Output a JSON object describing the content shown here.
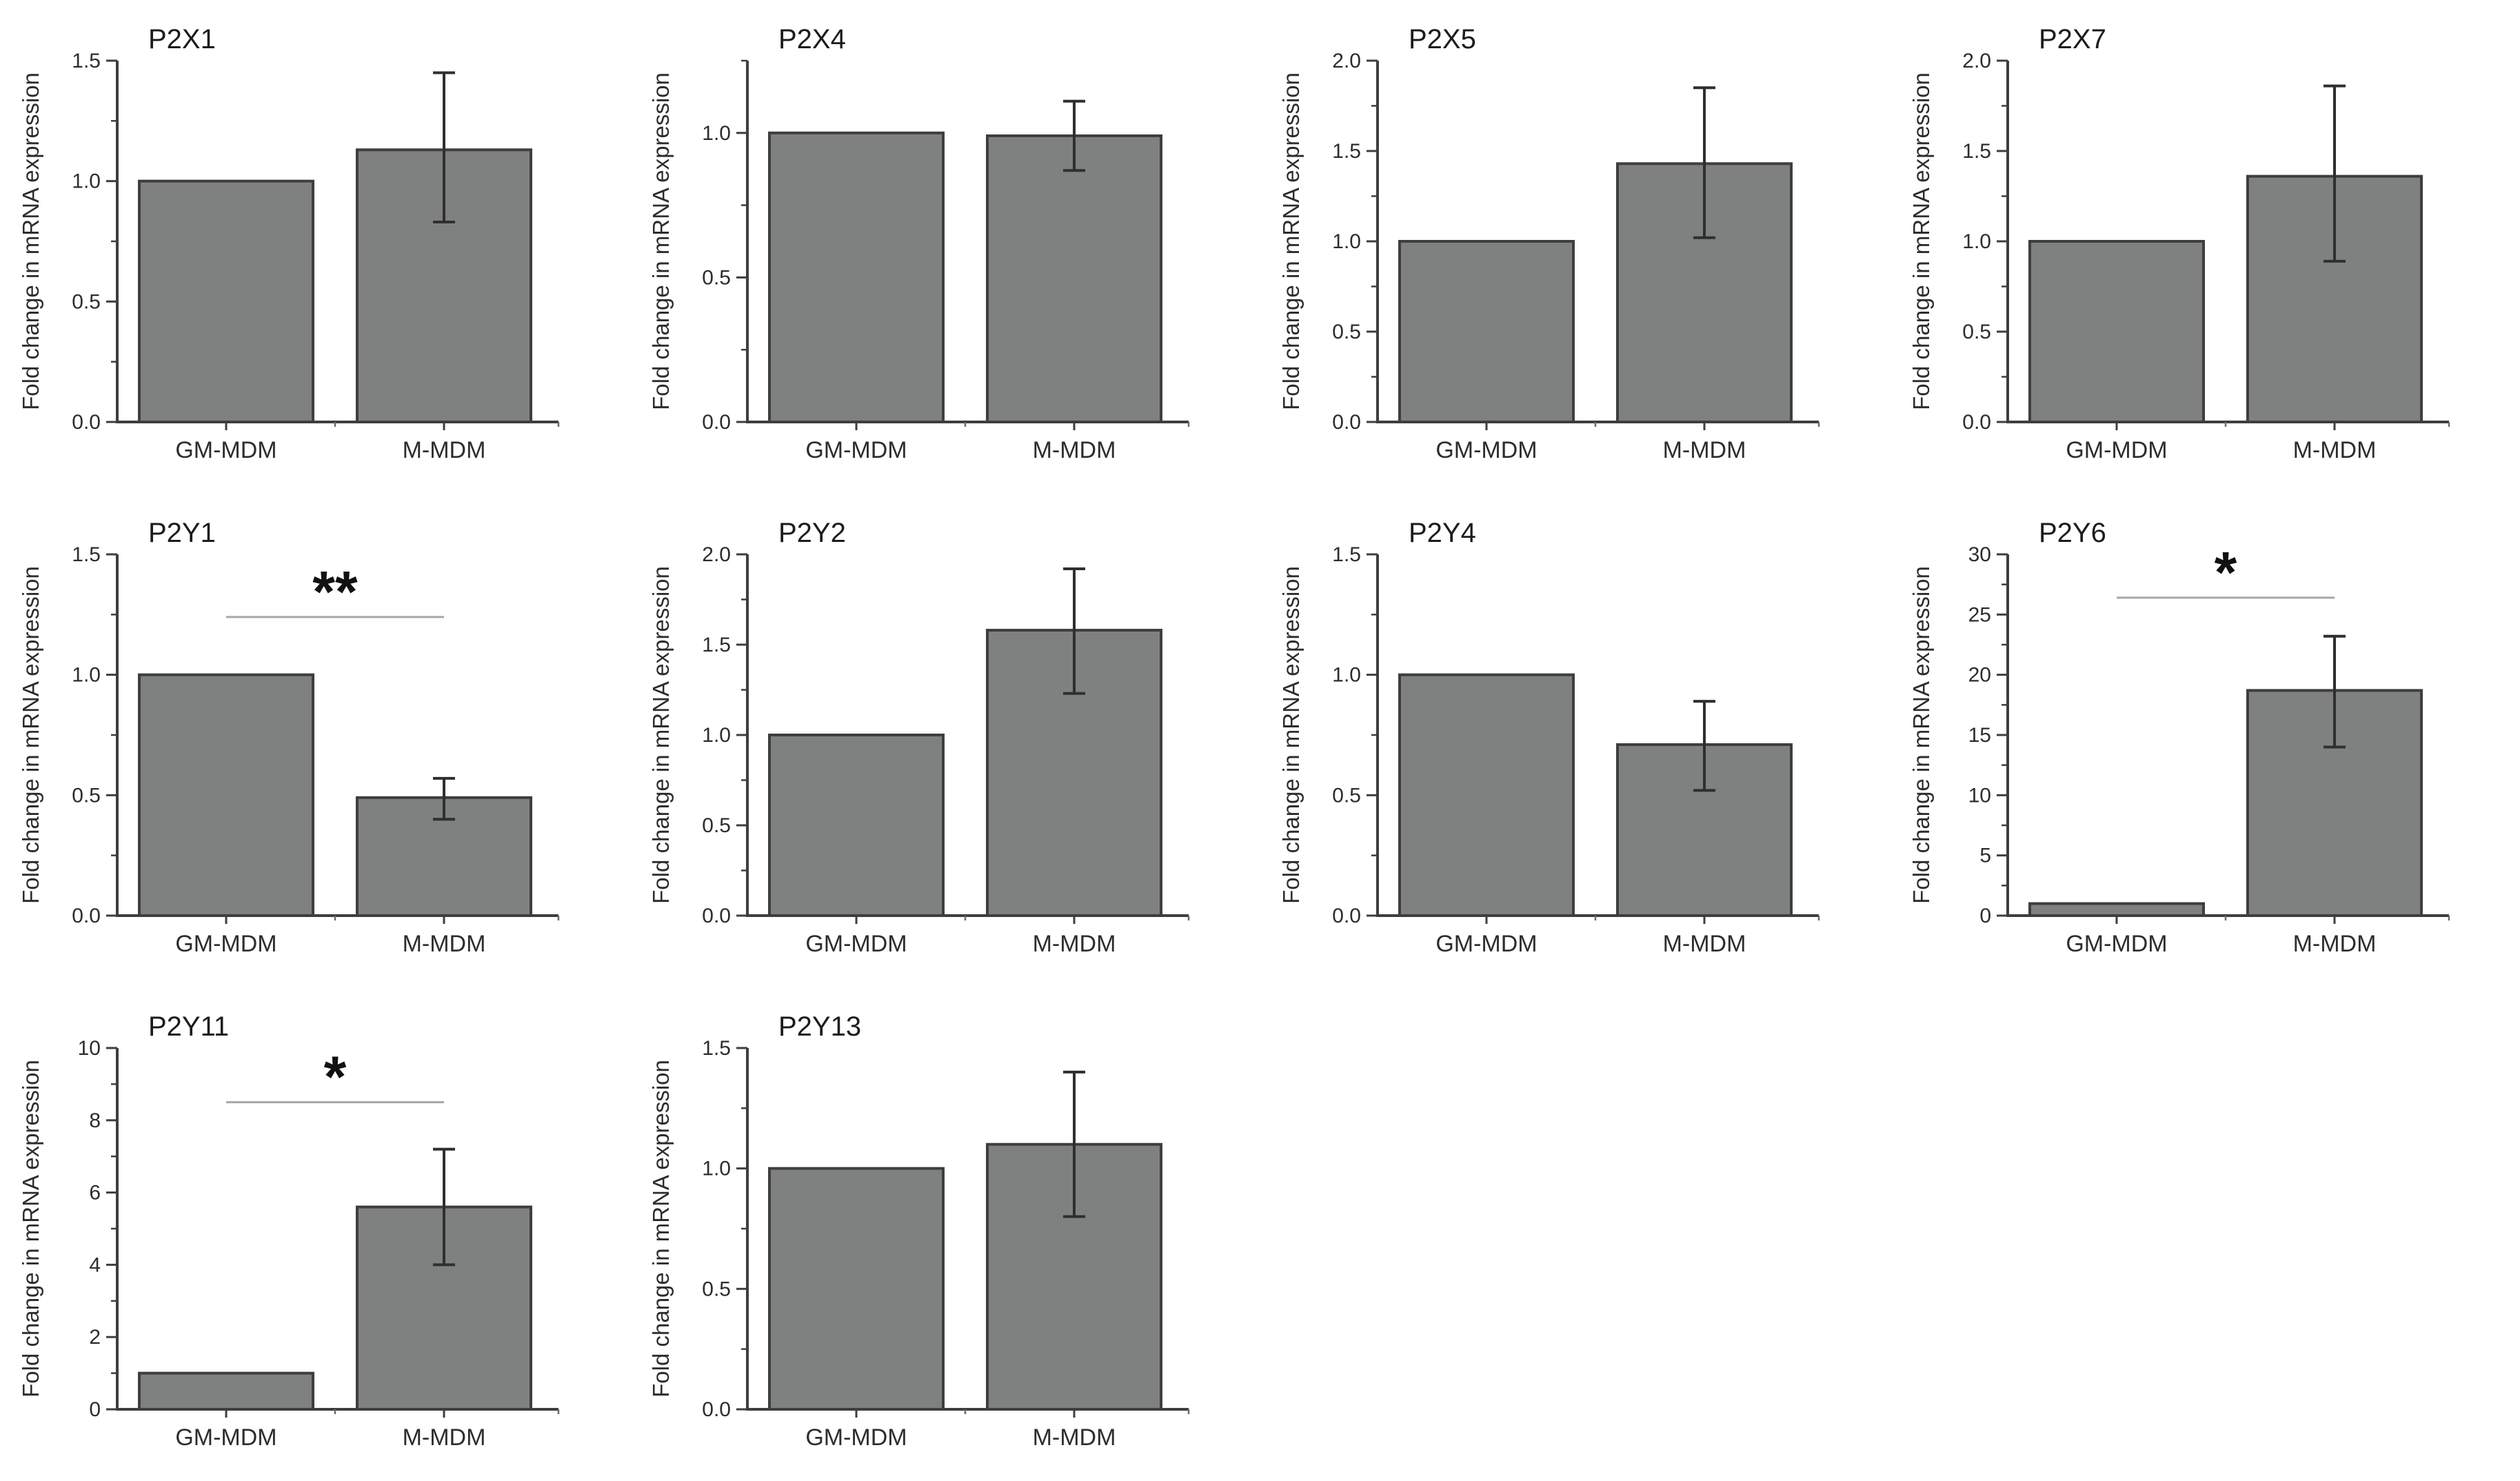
{
  "figure": {
    "ylabel": "Fold change in mRNA expression",
    "categories": [
      "GM-MDM",
      "M-MDM"
    ],
    "colors": {
      "background": "#ffffff",
      "bar_fill": "#7f8080",
      "bar_stroke": "#3e3e3e",
      "axis": "#3e3e3e",
      "error_bar": "#2f2f2f",
      "tick_text": "#2d2d2d",
      "label_text": "#2d2d2d",
      "significance_line": "#a6a6a6",
      "significance_star": "#111111"
    }
  },
  "chart_data": [
    {
      "type": "bar",
      "title": "P2X1",
      "row": 0,
      "col": 0,
      "categories": [
        "GM-MDM",
        "M-MDM"
      ],
      "values": [
        1.0,
        1.13
      ],
      "errors": [
        null,
        {
          "low": 0.83,
          "high": 1.45
        }
      ],
      "ylim": [
        0,
        1.5
      ],
      "yticks": [
        0,
        0.5,
        1.0,
        1.5
      ],
      "yticks_minor": [
        0.25,
        0.75,
        1.25
      ],
      "tick_decimals": 1,
      "ylabel": "Fold change in mRNA expression",
      "significance": null
    },
    {
      "type": "bar",
      "title": "P2X4",
      "row": 0,
      "col": 1,
      "categories": [
        "GM-MDM",
        "M-MDM"
      ],
      "values": [
        1.0,
        0.99
      ],
      "errors": [
        null,
        {
          "low": 0.87,
          "high": 1.11
        }
      ],
      "ylim": [
        0,
        1.25
      ],
      "yticks": [
        0,
        0.5,
        1.0
      ],
      "yticks_minor": [
        0.25,
        0.75,
        1.25
      ],
      "tick_decimals": 1,
      "ylabel": "Fold change in mRNA expression",
      "significance": null
    },
    {
      "type": "bar",
      "title": "P2X5",
      "row": 0,
      "col": 2,
      "categories": [
        "GM-MDM",
        "M-MDM"
      ],
      "values": [
        1.0,
        1.43
      ],
      "errors": [
        null,
        {
          "low": 1.02,
          "high": 1.85
        }
      ],
      "ylim": [
        0,
        2.0
      ],
      "yticks": [
        0,
        0.5,
        1.0,
        1.5,
        2.0
      ],
      "yticks_minor": [
        0.25,
        0.75,
        1.25,
        1.75
      ],
      "tick_decimals": 1,
      "ylabel": "Fold change in mRNA expression",
      "significance": null
    },
    {
      "type": "bar",
      "title": "P2X7",
      "row": 0,
      "col": 3,
      "categories": [
        "GM-MDM",
        "M-MDM"
      ],
      "values": [
        1.0,
        1.36
      ],
      "errors": [
        null,
        {
          "low": 0.89,
          "high": 1.86
        }
      ],
      "ylim": [
        0,
        2.0
      ],
      "yticks": [
        0,
        0.5,
        1.0,
        1.5,
        2.0
      ],
      "yticks_minor": [
        0.25,
        0.75,
        1.25,
        1.75
      ],
      "tick_decimals": 1,
      "ylabel": "Fold change in mRNA expression",
      "significance": null
    },
    {
      "type": "bar",
      "title": "P2Y1",
      "row": 1,
      "col": 0,
      "categories": [
        "GM-MDM",
        "M-MDM"
      ],
      "values": [
        1.0,
        0.49
      ],
      "errors": [
        null,
        {
          "low": 0.4,
          "high": 0.57
        }
      ],
      "ylim": [
        0,
        1.5
      ],
      "yticks": [
        0,
        0.5,
        1.0,
        1.5
      ],
      "yticks_minor": [
        0.25,
        0.75,
        1.25
      ],
      "tick_decimals": 1,
      "ylabel": "Fold change in mRNA expression",
      "significance": {
        "label": "**",
        "line_y": 1.24
      }
    },
    {
      "type": "bar",
      "title": "P2Y2",
      "row": 1,
      "col": 1,
      "categories": [
        "GM-MDM",
        "M-MDM"
      ],
      "values": [
        1.0,
        1.58
      ],
      "errors": [
        null,
        {
          "low": 1.23,
          "high": 1.92
        }
      ],
      "ylim": [
        0,
        2.0
      ],
      "yticks": [
        0,
        0.5,
        1.0,
        1.5,
        2.0
      ],
      "yticks_minor": [
        0.25,
        0.75,
        1.25,
        1.75
      ],
      "tick_decimals": 1,
      "ylabel": "Fold change in mRNA expression",
      "significance": null
    },
    {
      "type": "bar",
      "title": "P2Y4",
      "row": 1,
      "col": 2,
      "categories": [
        "GM-MDM",
        "M-MDM"
      ],
      "values": [
        1.0,
        0.71
      ],
      "errors": [
        null,
        {
          "low": 0.52,
          "high": 0.89
        }
      ],
      "ylim": [
        0,
        1.5
      ],
      "yticks": [
        0,
        0.5,
        1.0,
        1.5
      ],
      "yticks_minor": [
        0.25,
        0.75,
        1.25
      ],
      "tick_decimals": 1,
      "ylabel": "Fold change in mRNA expression",
      "significance": null
    },
    {
      "type": "bar",
      "title": "P2Y6",
      "row": 1,
      "col": 3,
      "categories": [
        "GM-MDM",
        "M-MDM"
      ],
      "values": [
        1.0,
        18.7
      ],
      "errors": [
        null,
        {
          "low": 14.0,
          "high": 23.2
        }
      ],
      "ylim": [
        0,
        30
      ],
      "yticks": [
        0,
        5,
        10,
        15,
        20,
        25,
        30
      ],
      "yticks_minor": [
        2.5,
        7.5,
        12.5,
        17.5,
        22.5,
        27.5
      ],
      "tick_decimals": 0,
      "ylabel": "Fold change in mRNA expression",
      "significance": {
        "label": "*",
        "line_y": 26.4
      }
    },
    {
      "type": "bar",
      "title": "P2Y11",
      "row": 2,
      "col": 0,
      "categories": [
        "GM-MDM",
        "M-MDM"
      ],
      "values": [
        1.0,
        5.6
      ],
      "errors": [
        null,
        {
          "low": 4.0,
          "high": 7.2
        }
      ],
      "ylim": [
        0,
        10
      ],
      "yticks": [
        0,
        2,
        4,
        6,
        8,
        10
      ],
      "yticks_minor": [
        1,
        3,
        5,
        7,
        9
      ],
      "tick_decimals": 0,
      "ylabel": "Fold change in mRNA expression",
      "significance": {
        "label": "*",
        "line_y": 8.5
      }
    },
    {
      "type": "bar",
      "title": "P2Y13",
      "row": 2,
      "col": 1,
      "categories": [
        "GM-MDM",
        "M-MDM"
      ],
      "values": [
        1.0,
        1.1
      ],
      "errors": [
        null,
        {
          "low": 0.8,
          "high": 1.4
        }
      ],
      "ylim": [
        0,
        1.5
      ],
      "yticks": [
        0,
        0.5,
        1.0,
        1.5
      ],
      "yticks_minor": [
        0.25,
        0.75,
        1.25
      ],
      "tick_decimals": 1,
      "ylabel": "Fold change in mRNA expression",
      "significance": null
    }
  ]
}
